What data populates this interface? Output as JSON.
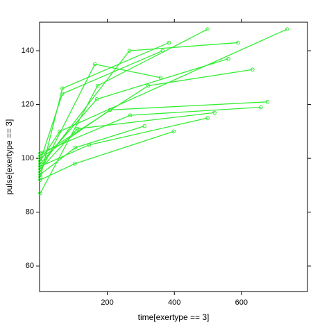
{
  "chart_data": {
    "type": "line",
    "x_label": "time[exertype == 3]",
    "y_label": "pulse[exertype == 3]",
    "xlim": [
      -2,
      797
    ],
    "ylim": [
      50.5,
      150.6
    ],
    "xticks": [
      200,
      400,
      600
    ],
    "yticks": [
      60,
      80,
      100,
      120,
      140
    ],
    "series": [
      {
        "color": "#33ee33",
        "x": [
          0,
          171,
          499
        ],
        "values": [
          87,
          127,
          148
        ]
      },
      {
        "color": "#33ee33",
        "x": [
          0,
          66,
          384
        ],
        "values": [
          93,
          126,
          143
        ]
      },
      {
        "color": "#33ee33",
        "x": [
          0,
          163,
          359
        ],
        "values": [
          95,
          135,
          130
        ]
      },
      {
        "color": "#33ee33",
        "x": [
          0,
          266,
          590
        ],
        "values": [
          97,
          140,
          143
        ]
      },
      {
        "color": "#33ee33",
        "x": [
          0,
          169,
          561
        ],
        "values": [
          98,
          122,
          137
        ]
      },
      {
        "color": "#33ee33",
        "x": [
          0,
          208,
          678
        ],
        "values": [
          100,
          118,
          121
        ]
      },
      {
        "color": "#33ee33",
        "x": [
          0,
          268,
          658
        ],
        "values": [
          102,
          116,
          119
        ]
      },
      {
        "color": "#33ee33",
        "x": [
          0,
          322,
          633
        ],
        "values": [
          101,
          127,
          133
        ]
      },
      {
        "color": "#33ee33",
        "x": [
          0,
          111,
          520
        ],
        "values": [
          96,
          111,
          117
        ]
      },
      {
        "color": "#33ee33",
        "x": [
          0,
          105,
          311
        ],
        "values": [
          94,
          104,
          112
        ]
      },
      {
        "color": "#33ee33",
        "x": [
          0,
          103,
          398
        ],
        "values": [
          92,
          98,
          110
        ]
      },
      {
        "color": "#33ee33",
        "x": [
          0,
          146,
          499
        ],
        "values": [
          97,
          105,
          115
        ]
      },
      {
        "color": "#33ee33",
        "x": [
          0,
          66,
          365
        ],
        "values": [
          99,
          124,
          140
        ]
      },
      {
        "color": "#33ee33",
        "x": [
          0,
          58,
          736
        ],
        "values": [
          99,
          110,
          148
        ]
      }
    ]
  }
}
